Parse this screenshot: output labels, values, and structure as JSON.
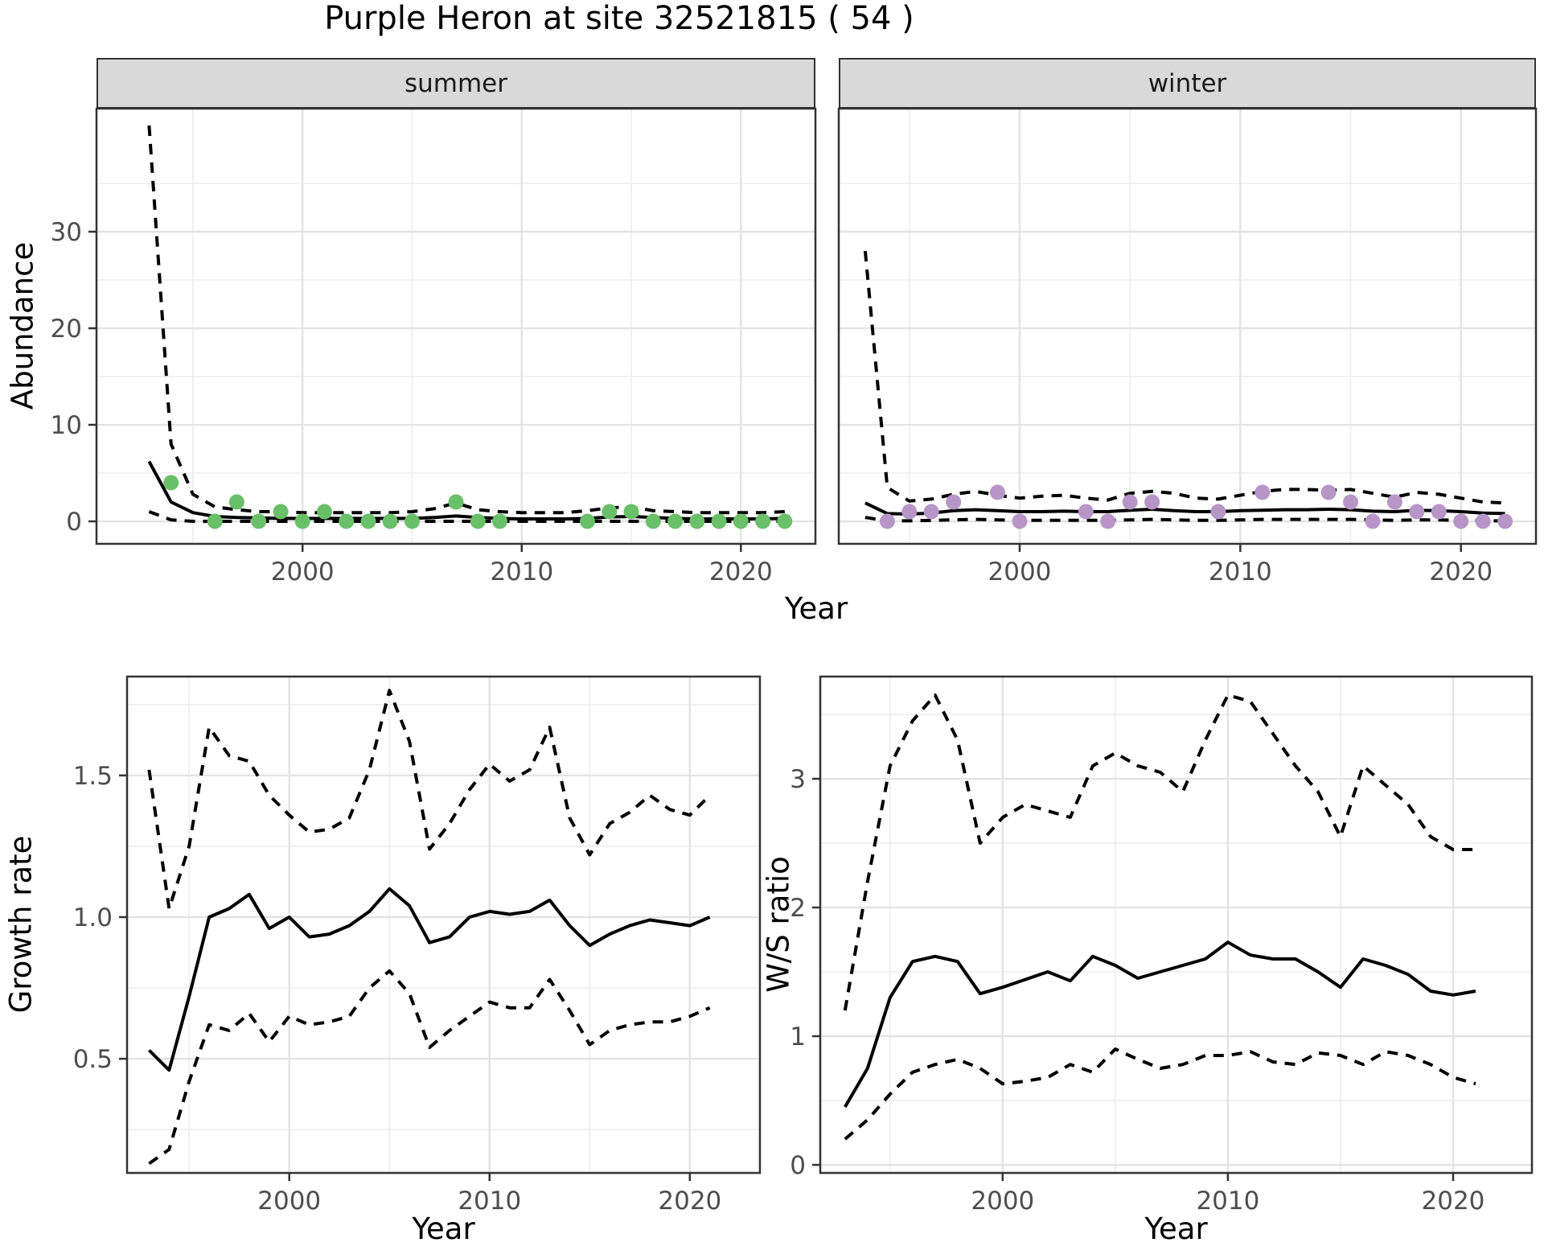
{
  "title": "Purple Heron at site 32521815 ( 54 )",
  "facets": {
    "summer": "summer",
    "winter": "winter"
  },
  "axis_titles": {
    "y_abundance": "Abundance",
    "x_top": "Year",
    "y_growth": "Growth rate",
    "x_growth": "Year",
    "y_ws": "W/S ratio",
    "x_ws": "Year"
  },
  "colors": {
    "summer_point": "#6abf69",
    "winter_point": "#b795c7",
    "line": "#000000",
    "strip_bg": "#d9d9d9",
    "strip_border": "#333333",
    "panel_border": "#333333",
    "grid_major": "#e3e3e3",
    "grid_minor": "#efefef",
    "tick_text": "#4d4d4d",
    "panel_bg": "#ffffff"
  },
  "chart_data": [
    {
      "id": "abundance_summer",
      "type": "line",
      "title": "summer",
      "xlabel": "Year",
      "ylabel": "Abundance",
      "x_range": [
        1990.6,
        2023.4
      ],
      "y_range": [
        -2.33,
        42.75
      ],
      "x_ticks": {
        "values": [
          2000,
          2010,
          2020
        ],
        "labels": [
          "2000",
          "2010",
          "2020"
        ]
      },
      "x_minor": [
        1995,
        2005,
        2015
      ],
      "y_ticks": {
        "show": true,
        "values": [
          0,
          10,
          20,
          30
        ],
        "labels": [
          "0",
          "10",
          "20",
          "30"
        ]
      },
      "y_minor": [
        5,
        15,
        25,
        35
      ],
      "x": [
        1993,
        1994,
        1995,
        1996,
        1997,
        1998,
        1999,
        2000,
        2001,
        2002,
        2003,
        2004,
        2005,
        2006,
        2007,
        2008,
        2009,
        2010,
        2011,
        2012,
        2013,
        2014,
        2015,
        2016,
        2017,
        2018,
        2019,
        2020,
        2021,
        2022
      ],
      "median": [
        6.2,
        2,
        0.9,
        0.5,
        0.4,
        0.35,
        0.3,
        0.3,
        0.3,
        0.3,
        0.3,
        0.3,
        0.3,
        0.4,
        0.55,
        0.4,
        0.3,
        0.25,
        0.25,
        0.25,
        0.3,
        0.45,
        0.5,
        0.4,
        0.3,
        0.25,
        0.25,
        0.25,
        0.25,
        0.3
      ],
      "upper": [
        41,
        8,
        2.8,
        1.5,
        1.2,
        1,
        1,
        0.9,
        0.9,
        0.9,
        0.9,
        0.9,
        1,
        1.3,
        1.9,
        1.2,
        1,
        0.9,
        0.9,
        0.9,
        1.1,
        1.4,
        1.5,
        1.1,
        1,
        0.9,
        0.9,
        0.9,
        0.9,
        1
      ],
      "lower": [
        1,
        0.15,
        0,
        0,
        0,
        0,
        0,
        0,
        0,
        0,
        0,
        0,
        0,
        0,
        0,
        0,
        0,
        0,
        0,
        0,
        0,
        0,
        0,
        0,
        0,
        0,
        0,
        0,
        0,
        0
      ],
      "observations": {
        "color": "#6abf69",
        "x": [
          1994,
          1996,
          1997,
          1998,
          1999,
          2000,
          2001,
          2002,
          2003,
          2004,
          2005,
          2007,
          2008,
          2009,
          2013,
          2014,
          2015,
          2016,
          2017,
          2018,
          2019,
          2020,
          2021,
          2022
        ],
        "y": [
          4,
          0,
          2,
          0,
          1,
          0,
          1,
          0,
          0,
          0,
          0,
          2,
          0,
          0,
          0,
          1,
          1,
          0,
          0,
          0,
          0,
          0,
          0,
          0
        ]
      }
    },
    {
      "id": "abundance_winter",
      "type": "line",
      "title": "winter",
      "xlabel": "Year",
      "ylabel": "Abundance",
      "x_range": [
        1991.8,
        2023.4
      ],
      "y_range": [
        -2.33,
        42.75
      ],
      "x_ticks": {
        "values": [
          2000,
          2010,
          2020
        ],
        "labels": [
          "2000",
          "2010",
          "2020"
        ]
      },
      "x_minor": [
        1995,
        2005,
        2015
      ],
      "y_ticks": {
        "show": false,
        "values": [
          0,
          10,
          20,
          30
        ],
        "labels": [
          "0",
          "10",
          "20",
          "30"
        ]
      },
      "y_minor": [
        5,
        15,
        25,
        35
      ],
      "x": [
        1993,
        1994,
        1995,
        1996,
        1997,
        1998,
        1999,
        2000,
        2001,
        2002,
        2003,
        2004,
        2005,
        2006,
        2007,
        2008,
        2009,
        2010,
        2011,
        2012,
        2013,
        2014,
        2015,
        2016,
        2017,
        2018,
        2019,
        2020,
        2021,
        2022
      ],
      "median": [
        1.9,
        0.8,
        0.75,
        0.85,
        1.1,
        1.2,
        1.1,
        1,
        1,
        1.05,
        1,
        1,
        1.15,
        1.25,
        1.1,
        1,
        1,
        1.1,
        1.15,
        1.2,
        1.2,
        1.25,
        1.2,
        1.05,
        1,
        1.15,
        1.1,
        1,
        0.85,
        0.8
      ],
      "upper": [
        28,
        3.5,
        2.1,
        2.3,
        2.8,
        3.1,
        2.7,
        2.4,
        2.6,
        2.7,
        2.4,
        2.2,
        2.9,
        3.1,
        2.9,
        2.4,
        2.3,
        2.7,
        3.1,
        3.3,
        3.3,
        3.2,
        3.3,
        2.9,
        2.5,
        3,
        2.8,
        2.4,
        2,
        1.9
      ],
      "lower": [
        0.4,
        0.05,
        0.05,
        0.1,
        0.15,
        0.2,
        0.15,
        0.1,
        0.1,
        0.1,
        0.1,
        0.1,
        0.15,
        0.2,
        0.15,
        0.1,
        0.1,
        0.15,
        0.2,
        0.2,
        0.2,
        0.2,
        0.2,
        0.15,
        0.1,
        0.15,
        0.15,
        0.1,
        0.05,
        0.05
      ],
      "observations": {
        "color": "#b795c7",
        "x": [
          1994,
          1995,
          1996,
          1997,
          1999,
          2000,
          2003,
          2004,
          2005,
          2006,
          2009,
          2011,
          2014,
          2015,
          2016,
          2017,
          2018,
          2019,
          2020,
          2021,
          2022
        ],
        "y": [
          0,
          1,
          1,
          2,
          3,
          0,
          1,
          0,
          2,
          2,
          1,
          3,
          3,
          2,
          0,
          2,
          1,
          1,
          0,
          0,
          0
        ]
      }
    },
    {
      "id": "growth_rate",
      "type": "line",
      "title": "",
      "xlabel": "Year",
      "ylabel": "Growth rate",
      "x_range": [
        1991.9,
        2023.5
      ],
      "y_range": [
        0.097,
        1.849
      ],
      "x_ticks": {
        "values": [
          2000,
          2010,
          2020
        ],
        "labels": [
          "2000",
          "2010",
          "2020"
        ]
      },
      "x_minor": [
        1995,
        2005,
        2015
      ],
      "y_ticks": {
        "show": true,
        "values": [
          0.5,
          1.0,
          1.5
        ],
        "labels": [
          "0.5",
          "1.0",
          "1.5"
        ]
      },
      "y_minor": [
        0.25,
        0.75,
        1.25,
        1.75
      ],
      "x": [
        1993,
        1994,
        1995,
        1996,
        1997,
        1998,
        1999,
        2000,
        2001,
        2002,
        2003,
        2004,
        2005,
        2006,
        2007,
        2008,
        2009,
        2010,
        2011,
        2012,
        2013,
        2014,
        2015,
        2016,
        2017,
        2018,
        2019,
        2020,
        2021
      ],
      "median": [
        0.53,
        0.46,
        0.72,
        1,
        1.03,
        1.08,
        0.96,
        1,
        0.93,
        0.94,
        0.97,
        1.02,
        1.1,
        1.04,
        0.91,
        0.93,
        1,
        1.02,
        1.01,
        1.02,
        1.06,
        0.97,
        0.9,
        0.94,
        0.97,
        0.99,
        0.98,
        0.97,
        1
      ],
      "upper": [
        1.52,
        1.03,
        1.25,
        1.67,
        1.57,
        1.55,
        1.43,
        1.36,
        1.3,
        1.31,
        1.35,
        1.52,
        1.8,
        1.62,
        1.24,
        1.33,
        1.45,
        1.54,
        1.48,
        1.52,
        1.67,
        1.35,
        1.22,
        1.33,
        1.37,
        1.43,
        1.38,
        1.36,
        1.43
      ],
      "lower": [
        0.13,
        0.18,
        0.42,
        0.62,
        0.6,
        0.66,
        0.56,
        0.65,
        0.62,
        0.63,
        0.65,
        0.75,
        0.81,
        0.73,
        0.54,
        0.6,
        0.65,
        0.7,
        0.68,
        0.68,
        0.78,
        0.67,
        0.55,
        0.6,
        0.62,
        0.63,
        0.63,
        0.65,
        0.68
      ]
    },
    {
      "id": "ws_ratio",
      "type": "line",
      "title": "",
      "xlabel": "Year",
      "ylabel": "W/S ratio",
      "x_range": [
        1991.9,
        2023.5
      ],
      "y_range": [
        -0.0625,
        3.794
      ],
      "x_ticks": {
        "values": [
          2000,
          2010,
          2020
        ],
        "labels": [
          "2000",
          "2010",
          "2020"
        ]
      },
      "x_minor": [
        1995,
        2005,
        2015
      ],
      "y_ticks": {
        "show": true,
        "values": [
          0,
          1,
          2,
          3
        ],
        "labels": [
          "0",
          "1",
          "2",
          "3"
        ]
      },
      "y_minor": [
        0.5,
        1.5,
        2.5,
        3.5
      ],
      "x": [
        1993,
        1994,
        1995,
        1996,
        1997,
        1998,
        1999,
        2000,
        2001,
        2002,
        2003,
        2004,
        2005,
        2006,
        2007,
        2008,
        2009,
        2010,
        2011,
        2012,
        2013,
        2014,
        2015,
        2016,
        2017,
        2018,
        2019,
        2020,
        2021
      ],
      "median": [
        0.45,
        0.75,
        1.3,
        1.58,
        1.62,
        1.58,
        1.33,
        1.38,
        1.44,
        1.5,
        1.43,
        1.62,
        1.55,
        1.45,
        1.5,
        1.55,
        1.6,
        1.73,
        1.63,
        1.6,
        1.6,
        1.5,
        1.38,
        1.6,
        1.55,
        1.48,
        1.35,
        1.32,
        1.35
      ],
      "upper": [
        1.2,
        2.2,
        3.1,
        3.45,
        3.65,
        3.3,
        2.5,
        2.7,
        2.8,
        2.75,
        2.7,
        3.1,
        3.2,
        3.1,
        3.05,
        2.9,
        3.3,
        3.65,
        3.6,
        3.35,
        3.1,
        2.9,
        2.55,
        3.1,
        2.95,
        2.8,
        2.55,
        2.45,
        2.45
      ],
      "lower": [
        0.2,
        0.35,
        0.55,
        0.72,
        0.78,
        0.82,
        0.75,
        0.63,
        0.65,
        0.68,
        0.78,
        0.72,
        0.9,
        0.82,
        0.75,
        0.78,
        0.85,
        0.85,
        0.88,
        0.8,
        0.78,
        0.87,
        0.85,
        0.78,
        0.88,
        0.85,
        0.78,
        0.68,
        0.63
      ]
    }
  ]
}
